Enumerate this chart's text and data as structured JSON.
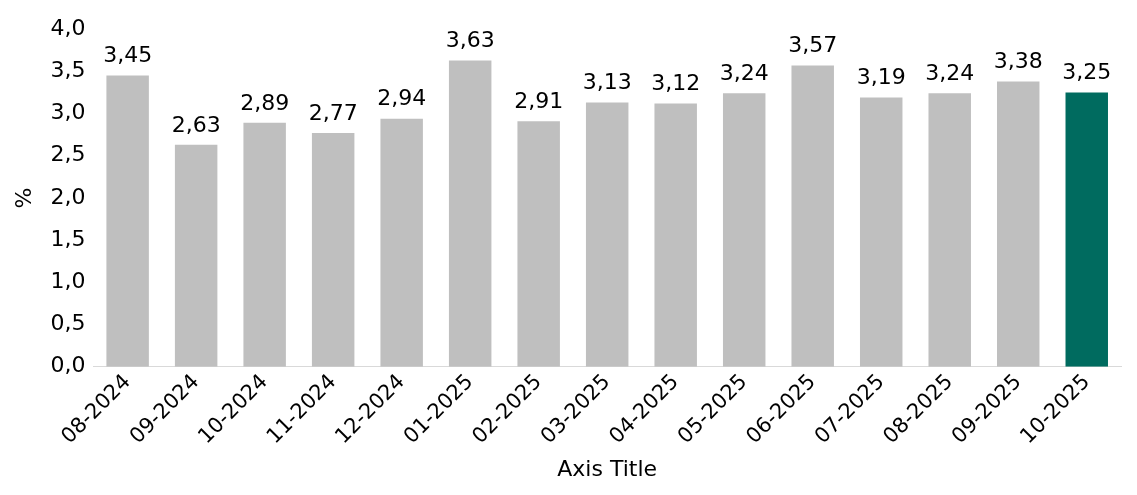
{
  "chart_data": {
    "type": "bar",
    "xlabel": "Axis Title",
    "ylabel": "%",
    "categories": [
      "08-2024",
      "09-2024",
      "10-2024",
      "11-2024",
      "12-2024",
      "01-2025",
      "02-2025",
      "03-2025",
      "04-2025",
      "05-2025",
      "06-2025",
      "07-2025",
      "08-2025",
      "09-2025",
      "10-2025"
    ],
    "values": [
      3.45,
      2.63,
      2.89,
      2.77,
      2.94,
      3.63,
      2.91,
      3.13,
      3.12,
      3.24,
      3.57,
      3.19,
      3.24,
      3.38,
      3.25
    ],
    "colors": [
      "#bfbfbf",
      "#bfbfbf",
      "#bfbfbf",
      "#bfbfbf",
      "#bfbfbf",
      "#bfbfbf",
      "#bfbfbf",
      "#bfbfbf",
      "#bfbfbf",
      "#bfbfbf",
      "#bfbfbf",
      "#bfbfbf",
      "#bfbfbf",
      "#bfbfbf",
      "#006b5f"
    ],
    "value_labels": [
      "3,45",
      "2,63",
      "2,89",
      "2,77",
      "2,94",
      "3,63",
      "2,91",
      "3,13",
      "3,12",
      "3,24",
      "3,57",
      "3,19",
      "3,24",
      "3,38",
      "3,25"
    ],
    "ylim": [
      0,
      4
    ],
    "yticks": [
      {
        "value": 0,
        "label": "0,0"
      },
      {
        "value": 0.5,
        "label": "0,5"
      },
      {
        "value": 1,
        "label": "1,0"
      },
      {
        "value": 1.5,
        "label": "1,5"
      },
      {
        "value": 2,
        "label": "2,0"
      },
      {
        "value": 2.5,
        "label": "2,5"
      },
      {
        "value": 3,
        "label": "3,0"
      },
      {
        "value": 3.5,
        "label": "3,5"
      },
      {
        "value": 4,
        "label": "4,0"
      }
    ],
    "grid": false,
    "legend": false
  }
}
